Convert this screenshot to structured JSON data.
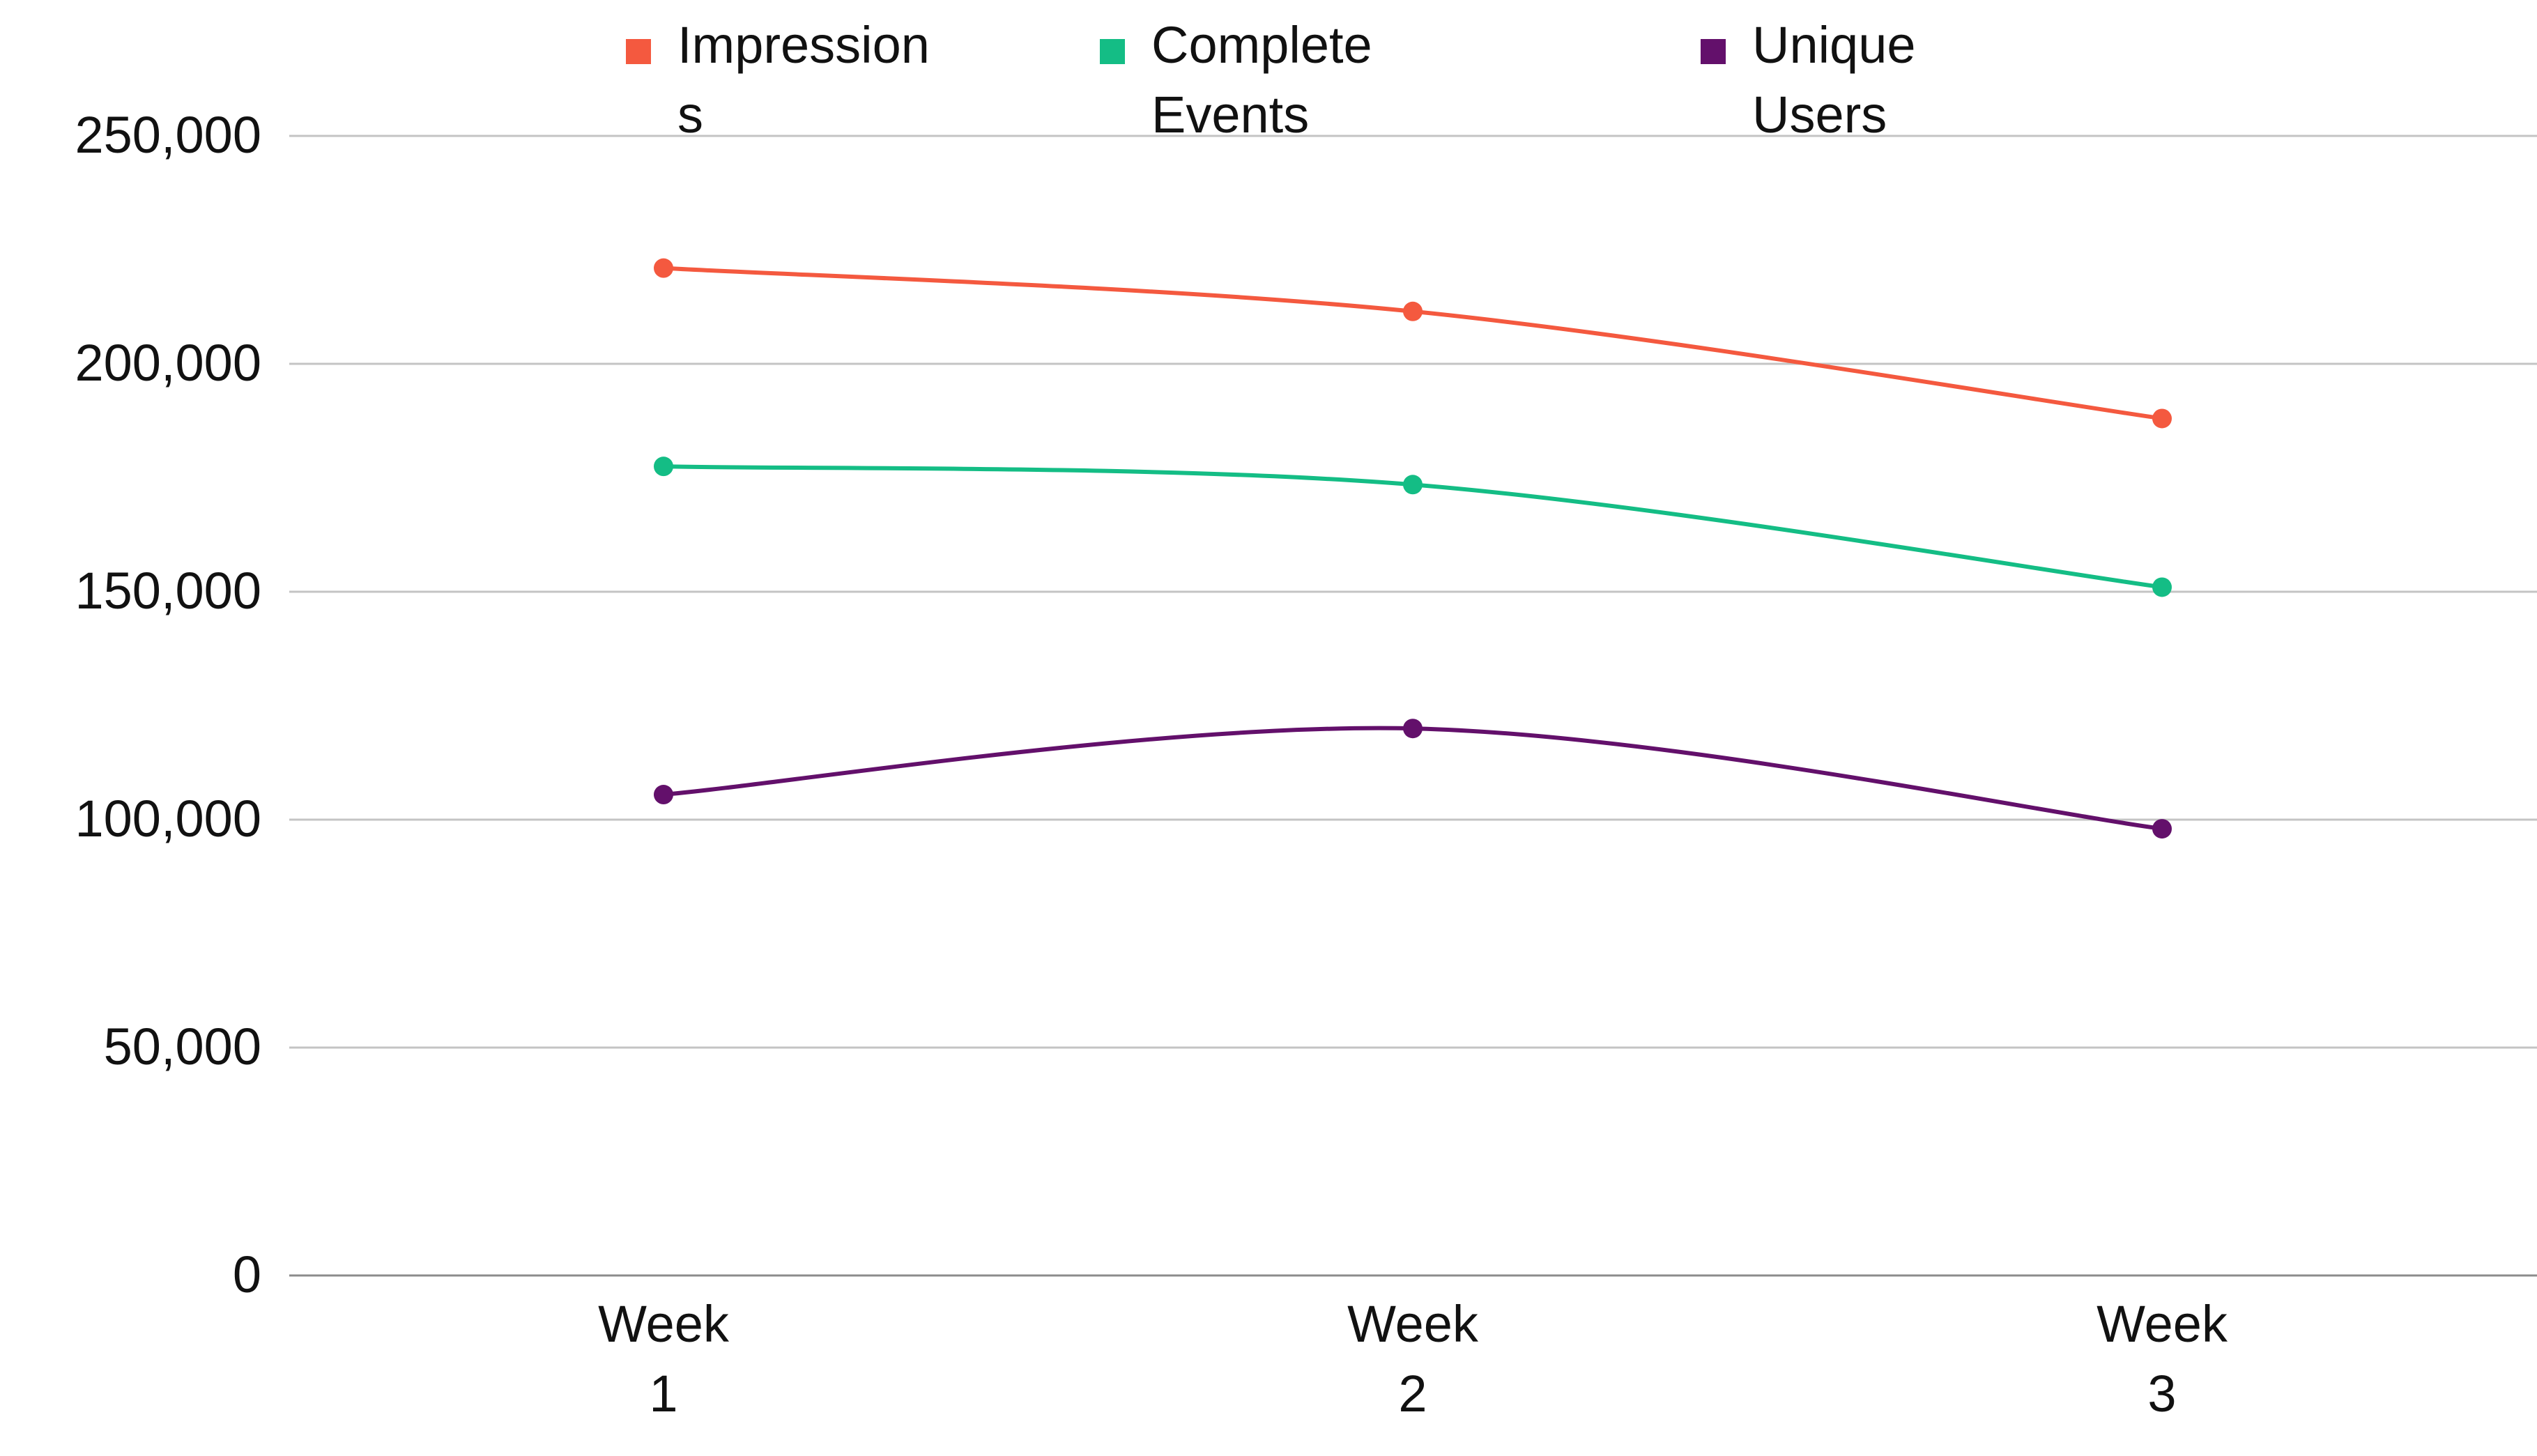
{
  "chart_data": {
    "type": "line",
    "categories": [
      [
        "Week",
        "1"
      ],
      [
        "Week",
        "2"
      ],
      [
        "Week",
        "3"
      ]
    ],
    "series": [
      {
        "name": [
          "Impression",
          "s"
        ],
        "values": [
          221000,
          211500,
          188000
        ],
        "color": "#f4593f"
      },
      {
        "name": [
          "Complete",
          "Events"
        ],
        "values": [
          177500,
          173500,
          151000
        ],
        "color": "#14bd85"
      },
      {
        "name": [
          "Unique",
          "Users"
        ],
        "values": [
          105500,
          120000,
          98000
        ],
        "color": "#63106b"
      }
    ],
    "y_ticks": [
      "0",
      "50,000",
      "100,000",
      "150,000",
      "200,000",
      "250,000"
    ],
    "y_tick_values": [
      0,
      50000,
      100000,
      150000,
      200000,
      250000
    ],
    "ylim": [
      0,
      250000
    ],
    "grid": true,
    "legend_position": "top",
    "smooth": true
  }
}
